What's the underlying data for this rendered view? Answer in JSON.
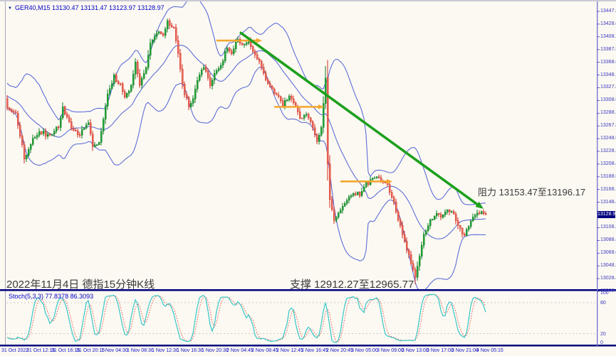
{
  "window": {
    "collapse_icon": "▼",
    "symbol_info": "GER40,M15 13130.47 13131.47 13123.97 13128.97"
  },
  "annotations": {
    "date_label": "2022年11月4日 德指15分钟K线",
    "support_label": "支撑 12912.27至12965.77",
    "resistance_label": "阻力 13153.47至13196.17"
  },
  "colors": {
    "background": "#fcf9f2",
    "candle_up_fill": "#21a637",
    "candle_up_stroke": "#0e7d24",
    "candle_down_fill": "#ee6e5f",
    "candle_down_stroke": "#cf2f23",
    "bollinger_band": "#5d6ed8",
    "trendline": "#1da01d",
    "arrow": "#f3a72e",
    "separator": "#00007e",
    "axis_separator": "#7a7ad0",
    "price_text": "#3a3ac0",
    "time_text": "#1414c8",
    "stoch_k": "#35c7c7",
    "stoch_d": "#ef5350",
    "stoch_level": "#bbbbbb",
    "tag_bg": "#00007e",
    "tag_text": "#ffffff"
  },
  "chart_data": {
    "type": "candlestick",
    "symbol": "GER40",
    "timeframe": "M15",
    "quote": {
      "open": 13130.47,
      "high": 13131.47,
      "low": 13123.97,
      "close": 13128.97
    },
    "price_axis": {
      "top_price": 13447.8,
      "bottom_price": 13008.6,
      "current_price": "13128.97",
      "labels": [
        "13447.80",
        "13428.00",
        "13408.20",
        "13387.80",
        "13368.00",
        "13348.20",
        "13327.80",
        "13308.00",
        "13288.20",
        "13267.80",
        "13248.00",
        "13228.20",
        "13208.40",
        "13188.00",
        "13168.20",
        "13148.40",
        "",
        "13108.20",
        "13088.40",
        "13068.00",
        "13048.20",
        "13028.40",
        "13008.60"
      ]
    },
    "time_axis": {
      "labels": [
        "31 Oct 2022",
        "31 Oct 12:15",
        "31 Oct 16:15",
        "31 Oct 20:15",
        "1 Nov 04:30",
        "1 Nov 08:30",
        "1 Nov 12:30",
        "1 Nov 16:30",
        "1 Nov 20:30",
        "2 Nov 04:45",
        "2 Nov 08:45",
        "2 Nov 12:45",
        "2 Nov 16:45",
        "2 Nov 20:45",
        "3 Nov 05:00",
        "3 Nov 09:00",
        "3 Nov 13:00",
        "3 Nov 17:00",
        "3 Nov 21:00",
        "4 Nov 05:15"
      ]
    },
    "bars_total": 225,
    "price_path_anchors": [
      [
        0,
        13296
      ],
      [
        4,
        13287
      ],
      [
        8,
        13218
      ],
      [
        12,
        13248
      ],
      [
        16,
        13259
      ],
      [
        20,
        13252
      ],
      [
        24,
        13267
      ],
      [
        26,
        13296
      ],
      [
        30,
        13265
      ],
      [
        34,
        13254
      ],
      [
        38,
        13274
      ],
      [
        40,
        13237
      ],
      [
        43,
        13243
      ],
      [
        45,
        13278
      ],
      [
        47,
        13321
      ],
      [
        50,
        13345
      ],
      [
        53,
        13334
      ],
      [
        55,
        13310
      ],
      [
        58,
        13332
      ],
      [
        60,
        13368
      ],
      [
        62,
        13332
      ],
      [
        65,
        13360
      ],
      [
        67,
        13399
      ],
      [
        70,
        13415
      ],
      [
        73,
        13410
      ],
      [
        75,
        13430
      ],
      [
        78,
        13423
      ],
      [
        80,
        13382
      ],
      [
        82,
        13332
      ],
      [
        85,
        13298
      ],
      [
        87,
        13310
      ],
      [
        89,
        13343
      ],
      [
        92,
        13360
      ],
      [
        95,
        13332
      ],
      [
        97,
        13349
      ],
      [
        100,
        13365
      ],
      [
        103,
        13390
      ],
      [
        105,
        13382
      ],
      [
        108,
        13404
      ],
      [
        111,
        13396
      ],
      [
        113,
        13401
      ],
      [
        116,
        13382
      ],
      [
        119,
        13360
      ],
      [
        121,
        13343
      ],
      [
        124,
        13323
      ],
      [
        127,
        13315
      ],
      [
        129,
        13301
      ],
      [
        132,
        13315
      ],
      [
        135,
        13298
      ],
      [
        137,
        13282
      ],
      [
        140,
        13285
      ],
      [
        143,
        13265
      ],
      [
        145,
        13243
      ],
      [
        147,
        13265
      ],
      [
        149,
        13343
      ],
      [
        150,
        13209
      ],
      [
        151,
        13153
      ],
      [
        153,
        13120
      ],
      [
        155,
        13131
      ],
      [
        157,
        13142
      ],
      [
        159,
        13150
      ],
      [
        162,
        13165
      ],
      [
        165,
        13159
      ],
      [
        167,
        13174
      ],
      [
        170,
        13181
      ],
      [
        173,
        13189
      ],
      [
        175,
        13185
      ],
      [
        178,
        13176
      ],
      [
        181,
        13148
      ],
      [
        183,
        13120
      ],
      [
        186,
        13087
      ],
      [
        189,
        13053
      ],
      [
        191,
        13031
      ],
      [
        193,
        13064
      ],
      [
        195,
        13098
      ],
      [
        198,
        13120
      ],
      [
        201,
        13131
      ],
      [
        203,
        13126
      ],
      [
        206,
        13137
      ],
      [
        209,
        13131
      ],
      [
        211,
        13109
      ],
      [
        214,
        13098
      ],
      [
        217,
        13120
      ],
      [
        219,
        13131
      ],
      [
        222,
        13134
      ],
      [
        224,
        13129
      ]
    ],
    "spike_high": {
      "bar": 149,
      "price": 13362
    },
    "spike_low": {
      "bar": 191,
      "price": 13020
    },
    "bollinger": {
      "period": 20,
      "deviation": 2
    },
    "trendline": {
      "from": {
        "bar": 109,
        "price": 13415
      },
      "to": {
        "bar": 223,
        "price": 13138
      }
    },
    "arrows": [
      {
        "from_bar": 98,
        "to_bar": 118,
        "price": 13402
      },
      {
        "from_bar": 125,
        "to_bar": 147,
        "price": 13298
      },
      {
        "from_bar": 156,
        "to_bar": 179,
        "price": 13181
      }
    ],
    "resistance_zone": [
      13153.47,
      13196.17
    ],
    "support_zone": [
      12912.27,
      12965.77
    ],
    "indicator": {
      "name": "Stoch(5,3,3)",
      "k": "77.8378",
      "d": "86.3093",
      "levels": [
        80,
        20
      ],
      "scale_labels": [
        "100",
        "80",
        "20",
        "0"
      ]
    }
  }
}
